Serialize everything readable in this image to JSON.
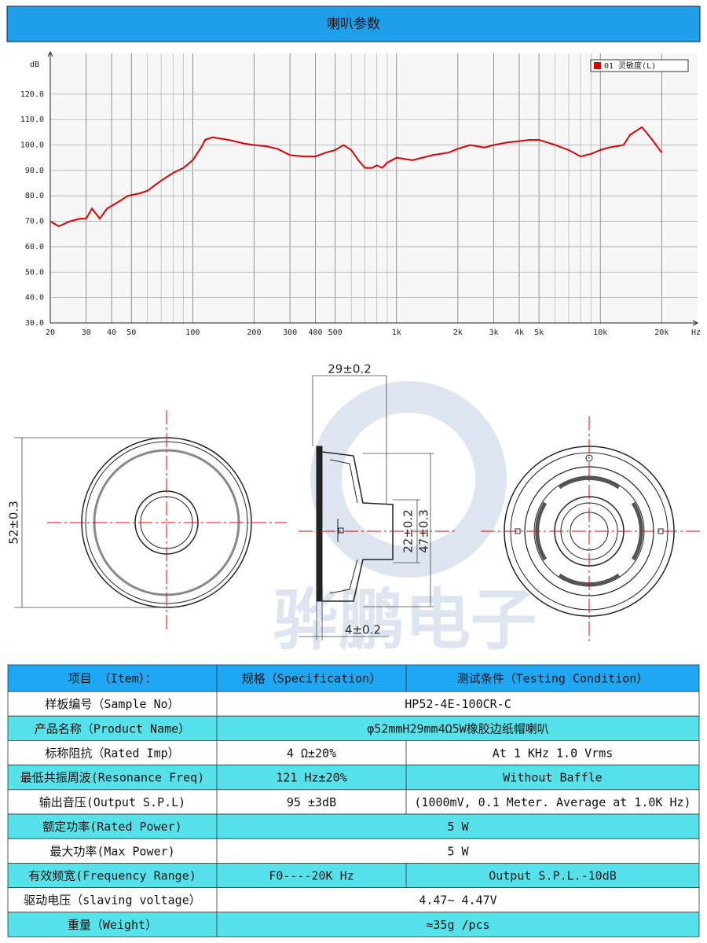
{
  "header": {
    "title": "喇叭参数"
  },
  "chart_data": {
    "type": "line",
    "x_scale": "log",
    "grid": true,
    "ylabel": "dB",
    "xlabel": "Hz",
    "legend": "upper right",
    "xlim": [
      20,
      30000
    ],
    "ylim": [
      30,
      136
    ],
    "yticks": [
      {
        "value": 30,
        "label": "30.0"
      },
      {
        "value": 40,
        "label": "40.0"
      },
      {
        "value": 50,
        "label": "50.0"
      },
      {
        "value": 60,
        "label": "60.0"
      },
      {
        "value": 70,
        "label": "70.0"
      },
      {
        "value": 80,
        "label": "80.0"
      },
      {
        "value": 90,
        "label": "90.0"
      },
      {
        "value": 100,
        "label": "100.0"
      },
      {
        "value": 110,
        "label": "110.0"
      },
      {
        "value": 120,
        "label": "120.0"
      }
    ],
    "xticks": [
      20,
      30,
      40,
      50,
      100,
      200,
      300,
      400,
      500,
      {
        "value": 1000,
        "label": "1k"
      },
      {
        "value": 2000,
        "label": "2k"
      },
      {
        "value": 3000,
        "label": "3k"
      },
      {
        "value": 4000,
        "label": "4k"
      },
      {
        "value": 5000,
        "label": "5k"
      },
      {
        "value": 10000,
        "label": "10k"
      },
      {
        "value": 20000,
        "label": "20k"
      }
    ],
    "xminor": [
      60,
      70,
      80,
      90,
      600,
      700,
      800,
      900,
      6000,
      7000,
      8000,
      9000
    ],
    "x": [
      20,
      22,
      25,
      28,
      30,
      32,
      35,
      38,
      42,
      48,
      55,
      60,
      70,
      80,
      90,
      100,
      110,
      115,
      125,
      150,
      180,
      200,
      230,
      260,
      300,
      350,
      400,
      450,
      500,
      550,
      600,
      650,
      700,
      760,
      800,
      850,
      900,
      1000,
      1200,
      1500,
      1800,
      2000,
      2300,
      2700,
      3000,
      3500,
      4000,
      4500,
      5000,
      5500,
      6000,
      7000,
      8000,
      9000,
      10000,
      11000,
      12000,
      13000,
      14000,
      16000,
      18000,
      20000
    ],
    "series": [
      {
        "name": "01 灵敏度(L)",
        "color": "#e00000",
        "values": [
          70,
          68,
          70,
          71,
          71,
          75,
          71,
          75,
          77,
          80,
          81,
          82,
          86,
          89,
          91,
          94,
          99,
          102,
          103,
          102,
          100.5,
          100,
          99.5,
          98.5,
          96,
          95.5,
          95.5,
          97,
          98,
          100,
          98,
          94,
          91,
          91,
          92,
          91,
          93,
          95,
          94,
          96,
          97,
          98.5,
          100,
          99,
          100,
          101,
          101.5,
          102,
          102,
          101,
          100,
          98,
          95.5,
          96.5,
          98,
          99,
          99.5,
          100,
          104,
          107,
          102,
          97
        ]
      }
    ]
  },
  "drawing": {
    "labels": [
      "29±0.2",
      "52±0.3",
      "22±0.2",
      "47±0.3",
      "4±0.2"
    ],
    "watermark": "骅鹏电子"
  },
  "table": {
    "header": [
      "项目 （Item）：",
      "规格（Specification）",
      "测试条件（Testing Condition）"
    ],
    "rows": [
      [
        "样板编号（Sample No）",
        "HP52-4E-100CR-C"
      ],
      [
        "产品名称（Product Name）",
        "φ52mmH29mm4Ω5W橡胶边纸帽喇叭"
      ],
      [
        "标称阻抗（Rated Imp）",
        "4 Ω±20%",
        "At 1 KHz  1.0 Vrms"
      ],
      [
        "最低共振周波(Resonance Freq)",
        "121 Hz±20%",
        "Without Baffle"
      ],
      [
        "输出音压(Output S.P.L)",
        "95 ±3dB",
        "(1000mV, 0.1 Meter. Average at 1.0K Hz)"
      ],
      [
        "额定功率(Rated Power)",
        "5 W"
      ],
      [
        "最大功率(Max Power)",
        "5 W"
      ],
      [
        "有效频宽(Frequency Range)",
        "F0----20K Hz",
        "Output S.P.L.-10dB"
      ],
      [
        "驱动电压（slaving voltage）",
        "4.47~ 4.47V"
      ],
      [
        "重量（Weight）",
        "≈35g /pcs"
      ]
    ]
  }
}
